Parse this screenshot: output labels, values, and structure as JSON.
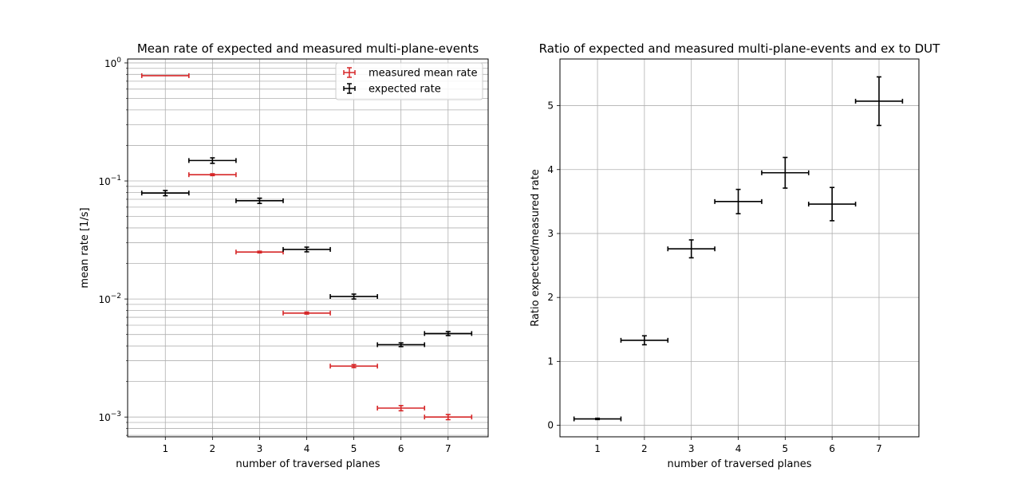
{
  "chart_data": [
    {
      "type": "scatter",
      "title": "Mean rate of expected and measured multi-plane-events",
      "xlabel": "number of traversed planes",
      "ylabel": "mean rate [1/s]",
      "yscale": "log",
      "xlim": [
        0.2,
        7.85
      ],
      "ylim": [
        0.00068,
        1.08
      ],
      "xticks": [
        1,
        2,
        3,
        4,
        5,
        6,
        7
      ],
      "yticks": [
        0.001,
        0.01,
        0.1,
        1
      ],
      "ytick_labels": [
        [
          "10",
          "−3"
        ],
        [
          "10",
          "−2"
        ],
        [
          "10",
          "−1"
        ],
        [
          "10",
          "0"
        ]
      ],
      "grid": true,
      "grid_minor": true,
      "legend_position": "top-right",
      "x_error": 0.5,
      "series": [
        {
          "name": "measured mean rate",
          "color": "#d62728",
          "x": [
            1,
            2,
            3,
            4,
            5,
            6,
            7
          ],
          "y": [
            0.78,
            0.113,
            0.025,
            0.0076,
            0.0027,
            0.00119,
            0.001
          ],
          "yerr": [
            0,
            0.002,
            0.0004,
            0.00015,
            8e-05,
            6e-05,
            5e-05
          ]
        },
        {
          "name": "expected rate",
          "color": "#000000",
          "x": [
            1,
            2,
            3,
            4,
            5,
            6,
            7
          ],
          "y": [
            0.079,
            0.149,
            0.068,
            0.0263,
            0.0105,
            0.0041,
            0.0051
          ],
          "yerr": [
            0.004,
            0.008,
            0.0035,
            0.0012,
            0.0005,
            0.00015,
            0.0002
          ]
        }
      ]
    },
    {
      "type": "scatter",
      "title": "Ratio of expected and measured multi-plane-events and ex to DUT",
      "xlabel": "number of traversed planes",
      "ylabel": "Ratio expected/measured rate",
      "yscale": "linear",
      "xlim": [
        0.2,
        7.85
      ],
      "ylim": [
        -0.18,
        5.73
      ],
      "xticks": [
        1,
        2,
        3,
        4,
        5,
        6,
        7
      ],
      "yticks": [
        0,
        1,
        2,
        3,
        4,
        5
      ],
      "grid": true,
      "x_error": 0.5,
      "series": [
        {
          "color": "#000000",
          "x": [
            1,
            2,
            3,
            4,
            5,
            6,
            7
          ],
          "y": [
            0.1,
            1.33,
            2.76,
            3.5,
            3.95,
            3.46,
            5.07
          ],
          "yerr": [
            0.01,
            0.07,
            0.14,
            0.19,
            0.24,
            0.26,
            0.38
          ]
        }
      ]
    }
  ]
}
